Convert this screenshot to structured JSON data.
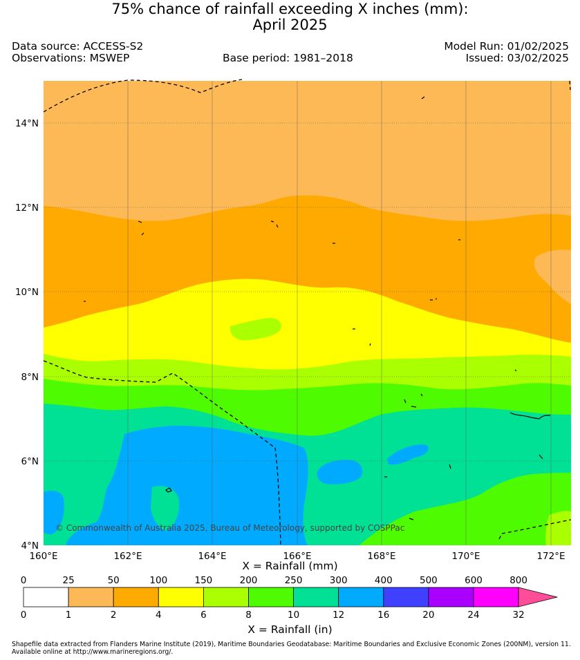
{
  "title": {
    "line1": "75% chance of rainfall exceeding X inches (mm):",
    "line2": "April 2025"
  },
  "meta": {
    "data_source": "Data source: ACCESS-S2",
    "observations": "Observations: MSWEP",
    "base_period": "Base period: 1981–2018",
    "model_run": "Model Run: 01/02/2025",
    "issued": "Issued: 03/02/2025"
  },
  "map": {
    "latitude_labels": [
      "14°N",
      "12°N",
      "10°N",
      "8°N",
      "6°N",
      "4°N"
    ],
    "longitude_labels": [
      "160°E",
      "162°E",
      "164°E",
      "166°E",
      "168°E",
      "170°E",
      "172°E"
    ],
    "copyright": "© Commonwealth of Australia 2025, Bureau of Meteorology, supported by COSPPac"
  },
  "colorbar": {
    "mm_title": "X = Rainfall (mm)",
    "in_title": "X = Rainfall (in)",
    "mm_labels": [
      "0",
      "25",
      "50",
      "100",
      "150",
      "200",
      "250",
      "300",
      "400",
      "500",
      "600",
      "800"
    ],
    "in_labels": [
      "0",
      "1",
      "2",
      "4",
      "6",
      "8",
      "10",
      "12",
      "16",
      "20",
      "24",
      "32"
    ],
    "colors": [
      "#ffffff",
      "#fdb956",
      "#ffaa00",
      "#ffff00",
      "#aaff00",
      "#4ffb00",
      "#00e196",
      "#00aaff",
      "#4040ff",
      "#aa00ff",
      "#ff00ff",
      "#ff4d9a"
    ]
  },
  "footer": {
    "line1": "Shapefile data extracted from Flanders Marine Institute (2019), Maritime Boundaries Geodatabase: Maritime Boundaries and Exclusive Economic Zones (200NM), version 11.",
    "line2": "Available online at http://www.marineregions.org/."
  }
}
